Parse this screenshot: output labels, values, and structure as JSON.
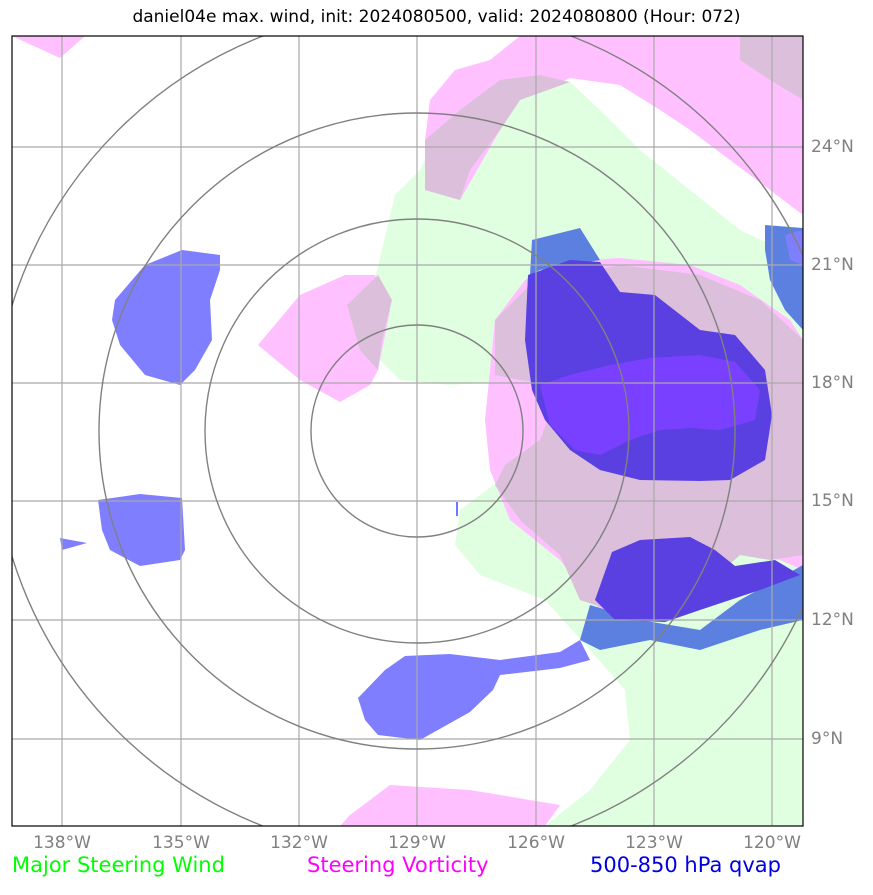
{
  "title": "daniel04e max. wind, init: 2024080500, valid: 2024080800 (Hour: 072)",
  "axes": {
    "lon_labels": [
      "138°W",
      "135°W",
      "132°W",
      "129°W",
      "126°W",
      "123°W",
      "120°W"
    ],
    "lat_labels": [
      "24°N",
      "21°N",
      "18°N",
      "15°N",
      "12°N",
      "9°N"
    ]
  },
  "legend": {
    "wind": "Major Steering Wind",
    "vorticity": "Steering Vorticity",
    "qvap": "500-850 hPa qvap"
  },
  "colors": {
    "wind": "#00ff00",
    "vorticity": "#ff00ff",
    "qvap": "#0000e0",
    "wind_fill": "#e0ffe0",
    "vort_fill": "#ffc0ff",
    "overlap_fill": "#dbbfdb",
    "qvap_fill": "#7e7eff",
    "qvap_dark": "#5a40e0",
    "qvap_violet": "#7a40ff",
    "qvap_steel": "#5b80e0",
    "grid": "#a9a9a9",
    "rings": "#808080"
  }
}
